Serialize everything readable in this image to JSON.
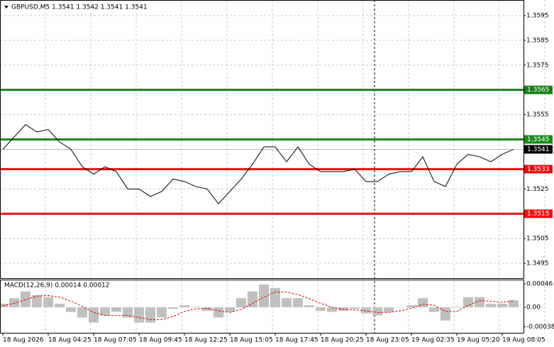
{
  "chart_data": [
    {
      "type": "line",
      "title": "GBPUSD,M5  1.3541 1.3542 1.3541 1.3541",
      "color": "#000000",
      "values": [
        1.3541,
        1.3546,
        1.3551,
        1.3548,
        1.3549,
        1.3544,
        1.3541,
        1.3534,
        1.3531,
        1.3534,
        1.3532,
        1.3525,
        1.3525,
        1.3522,
        1.3524,
        1.3529,
        1.3528,
        1.3526,
        1.3525,
        1.3519,
        1.3524,
        1.3529,
        1.3535,
        1.3542,
        1.3542,
        1.3536,
        1.3542,
        1.3535,
        1.3532,
        1.3532,
        1.3532,
        1.3533,
        1.3528,
        1.3528,
        1.3531,
        1.3532,
        1.3532,
        1.3538,
        1.3528,
        1.3526,
        1.3535,
        1.3539,
        1.3538,
        1.3536,
        1.3539,
        1.3541
      ],
      "ylim": [
        1.3489,
        1.3601
      ],
      "yticks": [
        1.3595,
        1.3585,
        1.3575,
        1.3555,
        1.3525,
        1.3505,
        1.3495
      ],
      "grid": true,
      "levels": [
        {
          "value": 1.3565,
          "color": "#1a7f1a"
        },
        {
          "value": 1.3545,
          "color": "#1a8c1a"
        },
        {
          "value": 1.3533,
          "color": "#e01010"
        },
        {
          "value": 1.3515,
          "color": "#ee1111"
        }
      ],
      "last_price": 1.3541
    },
    {
      "type": "macd",
      "title": "MACD(12,26,9) 0.00014 0.00012",
      "categories": [
        "18 Aug 2026",
        null,
        null,
        null,
        "18 Aug 04:25",
        null,
        null,
        null,
        "18 Aug 07:05",
        null,
        null,
        null,
        "18 Aug 09:45",
        null,
        null,
        null,
        "18 Aug 12:25",
        null,
        null,
        null,
        "18 Aug 15:05",
        null,
        null,
        null,
        "18 Aug 17:45",
        null,
        null,
        null,
        "18 Aug 20:25",
        null,
        null,
        null,
        "18 Aug 23:05",
        null,
        null,
        null,
        "19 Aug 02:35",
        null,
        null,
        null,
        "19 Aug 05:20",
        null,
        null,
        null,
        "19 Aug 08:05",
        null
      ],
      "histogram": {
        "color": "#c0c0c0",
        "values": [
          7e-05,
          0.00018,
          0.00031,
          0.00024,
          0.0002,
          7e-05,
          -9e-05,
          -0.0002,
          -0.0003,
          -0.00016,
          -9e-05,
          -0.0002,
          -0.0003,
          -0.0003,
          -0.0002,
          -3e-05,
          4e-05,
          1e-05,
          -7e-05,
          -0.0002,
          -9e-05,
          0.00018,
          0.00031,
          0.00045,
          0.00038,
          0.00018,
          0.00018,
          4e-05,
          -7e-05,
          -9e-05,
          -7e-05,
          -3e-05,
          -0.00012,
          -0.00016,
          -9e-05,
          0,
          4e-05,
          0.00018,
          -9e-05,
          -0.00026,
          1e-05,
          0.0002,
          0.0002,
          7e-05,
          7e-05,
          0.00014
        ]
      },
      "signal": {
        "color": "#e00000",
        "values": [
          3e-05,
          8e-05,
          0.00015,
          0.00022,
          0.00023,
          0.0002,
          0.00012,
          2e-05,
          -0.0001,
          -0.00016,
          -0.00016,
          -0.00016,
          -0.0002,
          -0.00024,
          -0.00024,
          -0.00018,
          -8e-05,
          -3e-05,
          -2e-05,
          -7e-05,
          -0.0001,
          -4e-05,
          8e-05,
          0.0002,
          0.0003,
          0.0003,
          0.00025,
          0.00017,
          8e-05,
          0,
          -4e-05,
          -5e-05,
          -7e-05,
          -0.0001,
          -0.0001,
          -7e-05,
          -2e-05,
          6e-05,
          4e-05,
          -8e-05,
          -8e-05,
          4e-05,
          0.00013,
          0.00012,
          0.0001,
          0.00012
        ]
      },
      "ylim": [
        -0.0005,
        0.00053
      ],
      "yticks": [
        {
          "value": 0.00046,
          "label": "0.00046"
        },
        {
          "value": 0,
          "label": "0.00"
        },
        {
          "value": -0.00038,
          "label": "-0.00038"
        }
      ]
    }
  ]
}
